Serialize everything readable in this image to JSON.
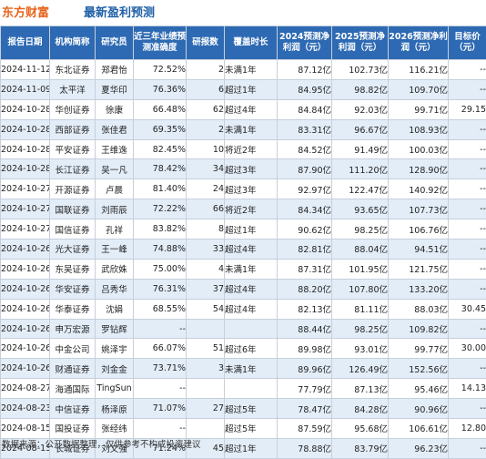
{
  "header": {
    "brand": "东方财富",
    "title": "最新盈利预测"
  },
  "table": {
    "columns": [
      "报告日期",
      "机构简称",
      "研究员",
      "近三年业绩预测准确度",
      "研报数",
      "覆盖时长",
      "2024预测净利润（元）",
      "2025预测净利润（元）",
      "2026预测净利润（元）",
      "目标价（元）"
    ],
    "rows": [
      [
        "2024-11-12",
        "东北证券",
        "郑君怡",
        "72.52%",
        "2",
        "未满1年",
        "87.12亿",
        "102.73亿",
        "116.21亿",
        "--"
      ],
      [
        "2024-11-09",
        "太平洋",
        "夏华印",
        "76.36%",
        "6",
        "超过1年",
        "84.95亿",
        "98.82亿",
        "109.70亿",
        "--"
      ],
      [
        "2024-10-28",
        "华创证券",
        "徐康",
        "66.48%",
        "62",
        "超过4年",
        "84.84亿",
        "92.03亿",
        "99.71亿",
        "29.15"
      ],
      [
        "2024-10-28",
        "西部证券",
        "张佳君",
        "69.35%",
        "2",
        "未满1年",
        "83.31亿",
        "96.67亿",
        "108.93亿",
        "--"
      ],
      [
        "2024-10-28",
        "平安证券",
        "王维逸",
        "82.45%",
        "10",
        "将近2年",
        "84.52亿",
        "91.49亿",
        "100.03亿",
        "--"
      ],
      [
        "2024-10-28",
        "长江证券",
        "吴一凡",
        "78.42%",
        "34",
        "超过3年",
        "87.90亿",
        "111.20亿",
        "128.90亿",
        "--"
      ],
      [
        "2024-10-27",
        "开源证券",
        "卢晨",
        "81.40%",
        "24",
        "超过3年",
        "92.97亿",
        "122.47亿",
        "140.92亿",
        "--"
      ],
      [
        "2024-10-27",
        "国联证券",
        "刘雨辰",
        "72.22%",
        "66",
        "将近2年",
        "84.34亿",
        "93.65亿",
        "107.73亿",
        "--"
      ],
      [
        "2024-10-27",
        "国信证券",
        "孔祥",
        "83.82%",
        "8",
        "超过1年",
        "90.62亿",
        "98.25亿",
        "106.76亿",
        "--"
      ],
      [
        "2024-10-26",
        "光大证券",
        "王一峰",
        "74.88%",
        "33",
        "超过4年",
        "82.81亿",
        "88.04亿",
        "94.51亿",
        "--"
      ],
      [
        "2024-10-26",
        "东吴证券",
        "武欣姝",
        "75.00%",
        "4",
        "未满1年",
        "87.31亿",
        "101.95亿",
        "121.75亿",
        "--"
      ],
      [
        "2024-10-26",
        "华安证券",
        "吕秀华",
        "76.31%",
        "37",
        "超过4年",
        "88.20亿",
        "107.80亿",
        "133.20亿",
        "--"
      ],
      [
        "2024-10-26",
        "华泰证券",
        "沈娟",
        "68.55%",
        "54",
        "超过4年",
        "82.13亿",
        "81.11亿",
        "88.03亿",
        "30.45"
      ],
      [
        "2024-10-26",
        "申万宏源",
        "罗钻辉",
        "--",
        "",
        "",
        "88.44亿",
        "98.25亿",
        "109.82亿",
        "--"
      ],
      [
        "2024-10-26",
        "中金公司",
        "姚泽宇",
        "66.07%",
        "51",
        "超过6年",
        "89.98亿",
        "93.01亿",
        "99.77亿",
        "30.00"
      ],
      [
        "2024-10-26",
        "财通证券",
        "刘金金",
        "73.71%",
        "3",
        "未满1年",
        "89.96亿",
        "126.49亿",
        "152.56亿",
        "--"
      ],
      [
        "2024-08-27",
        "海通国际",
        "TingSun",
        "--",
        "",
        "",
        "77.79亿",
        "87.13亿",
        "95.46亿",
        "14.13"
      ],
      [
        "2024-08-23",
        "中信证券",
        "杨泽原",
        "71.07%",
        "27",
        "超过5年",
        "78.47亿",
        "84.28亿",
        "90.96亿",
        "--"
      ],
      [
        "2024-08-15",
        "国投证券",
        "张经纬",
        "--",
        "",
        "超过5年",
        "87.59亿",
        "95.68亿",
        "106.61亿",
        "12.80"
      ],
      [
        "2024-08-13",
        "长城证券",
        "刘文强",
        "71.24%",
        "45",
        "超过1年",
        "78.88亿",
        "83.79亿",
        "96.23亿",
        "--"
      ]
    ]
  },
  "footer": "数据来源：公开数据整理，仅供参考不构成投资建议"
}
